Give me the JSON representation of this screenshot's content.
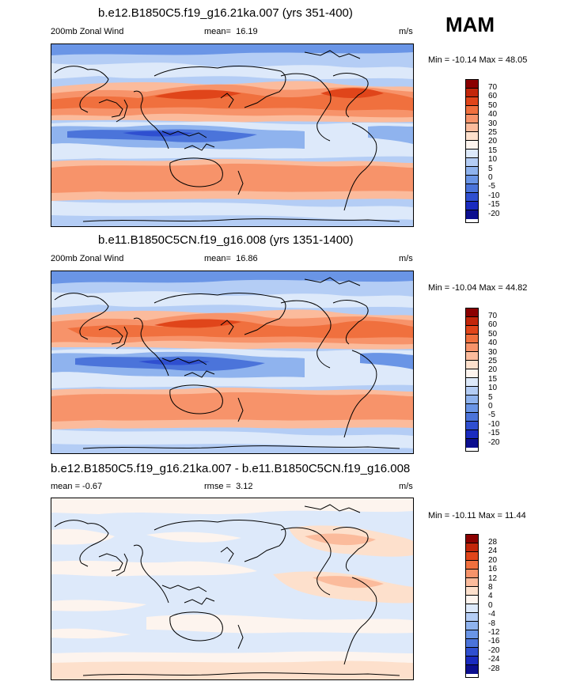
{
  "season": "MAM",
  "colors": {
    "zonal_scale": [
      "#8b0000",
      "#c2260a",
      "#e0451a",
      "#f0703e",
      "#f7936a",
      "#fbbb9c",
      "#fde0cc",
      "#fdf4ee",
      "#dde9fa",
      "#b4cdf5",
      "#8fb3ee",
      "#6a95e6",
      "#4b74da",
      "#2f4fd0",
      "#1a2bbf",
      "#0c0f8f"
    ],
    "diff_scale": [
      "#8b0000",
      "#c2260a",
      "#e0451a",
      "#f0703e",
      "#f7936a",
      "#fbbb9c",
      "#fde0cc",
      "#fdf4ee",
      "#dde9fa",
      "#b4cdf5",
      "#8fb3ee",
      "#6a95e6",
      "#4b74da",
      "#2f4fd0",
      "#1a2bbf",
      "#0c0f8f"
    ]
  },
  "panels": [
    {
      "title": "b.e12.B1850C5.f19_g16.21ka.007 (yrs 351-400)",
      "left_label": "200mb Zonal Wind",
      "stat_label": "mean=",
      "stat_value": "16.19",
      "units": "m/s",
      "minmax": "Min = -10.14 Max = 48.05",
      "ticks": [
        "70",
        "60",
        "50",
        "40",
        "30",
        "25",
        "20",
        "15",
        "10",
        "5",
        "0",
        "-5",
        "-10",
        "-15",
        "-20"
      ]
    },
    {
      "title": "b.e11.B1850C5CN.f19_g16.008 (yrs 1351-1400)",
      "left_label": "200mb Zonal Wind",
      "stat_label": "mean=",
      "stat_value": "16.86",
      "units": "m/s",
      "minmax": "Min = -10.04 Max = 44.82",
      "ticks": [
        "70",
        "60",
        "50",
        "40",
        "30",
        "25",
        "20",
        "15",
        "10",
        "5",
        "0",
        "-5",
        "-10",
        "-15",
        "-20"
      ]
    },
    {
      "title": "b.e12.B1850C5.f19_g16.21ka.007 - b.e11.B1850C5CN.f19_g16.008",
      "left_label": "mean =  -0.67",
      "stat_label": "rmse =",
      "stat_value": "3.12",
      "units": "m/s",
      "minmax": "Min = -10.11 Max = 11.44",
      "ticks": [
        "28",
        "24",
        "20",
        "16",
        "12",
        "8",
        "4",
        "0",
        "-4",
        "-8",
        "-12",
        "-16",
        "-20",
        "-24",
        "-28"
      ]
    }
  ]
}
